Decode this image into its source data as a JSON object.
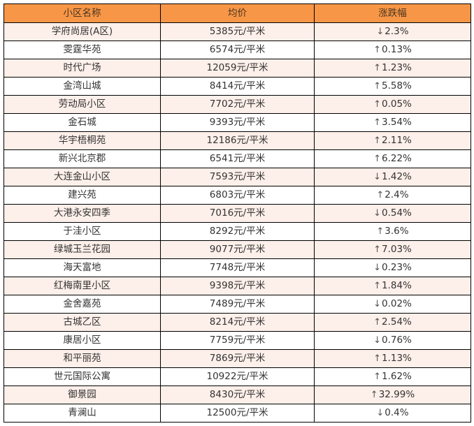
{
  "table": {
    "headers": [
      "小区名称",
      "均价",
      "涨跌幅"
    ],
    "colors": {
      "header_bg": "#F79646",
      "odd_row_bg": "#FDEFE9",
      "even_row_bg": "#FFFFFF"
    },
    "rows": [
      {
        "name": "学府尚居(A区)",
        "price": "5385元/平米",
        "dir": "↓",
        "change": "2.3%"
      },
      {
        "name": "雯霆华苑",
        "price": "6574元/平米",
        "dir": "↑",
        "change": "0.13%"
      },
      {
        "name": "时代广场",
        "price": "12059元/平米",
        "dir": "↑",
        "change": "1.23%"
      },
      {
        "name": "金湾山城",
        "price": "8414元/平米",
        "dir": "↑",
        "change": "5.58%"
      },
      {
        "name": "劳动局小区",
        "price": "7702元/平米",
        "dir": "↑",
        "change": "0.05%"
      },
      {
        "name": "金石城",
        "price": "9393元/平米",
        "dir": "↑",
        "change": "3.54%"
      },
      {
        "name": "华宇梧桐苑",
        "price": "12186元/平米",
        "dir": "↑",
        "change": "2.11%"
      },
      {
        "name": "新兴北京郡",
        "price": "6541元/平米",
        "dir": "↑",
        "change": "6.22%"
      },
      {
        "name": "大连金山小区",
        "price": "7593元/平米",
        "dir": "↓",
        "change": "1.42%"
      },
      {
        "name": "建兴苑",
        "price": "6803元/平米",
        "dir": "↑",
        "change": "2.4%"
      },
      {
        "name": "大港永安四季",
        "price": "7016元/平米",
        "dir": "↓",
        "change": "0.54%"
      },
      {
        "name": "于洼小区",
        "price": "8292元/平米",
        "dir": "↑",
        "change": "3.6%"
      },
      {
        "name": "绿城玉兰花园",
        "price": "9077元/平米",
        "dir": "↑",
        "change": "7.03%"
      },
      {
        "name": "海天富地",
        "price": "7748元/平米",
        "dir": "↓",
        "change": "0.23%"
      },
      {
        "name": "红梅南里小区",
        "price": "9398元/平米",
        "dir": "↑",
        "change": "1.84%"
      },
      {
        "name": "金舍嘉苑",
        "price": "7489元/平米",
        "dir": "↓",
        "change": "0.02%"
      },
      {
        "name": "古城乙区",
        "price": "8214元/平米",
        "dir": "↑",
        "change": "2.54%"
      },
      {
        "name": "康居小区",
        "price": "7759元/平米",
        "dir": "↓",
        "change": "0.76%"
      },
      {
        "name": "和平丽苑",
        "price": "7869元/平米",
        "dir": "↑",
        "change": "1.13%"
      },
      {
        "name": "世元国际公寓",
        "price": "10922元/平米",
        "dir": "↑",
        "change": "1.62%"
      },
      {
        "name": "御景园",
        "price": "8430元/平米",
        "dir": "↑",
        "change": "32.99%"
      },
      {
        "name": "青澜山",
        "price": "12500元/平米",
        "dir": "↓",
        "change": "0.4%"
      }
    ]
  }
}
